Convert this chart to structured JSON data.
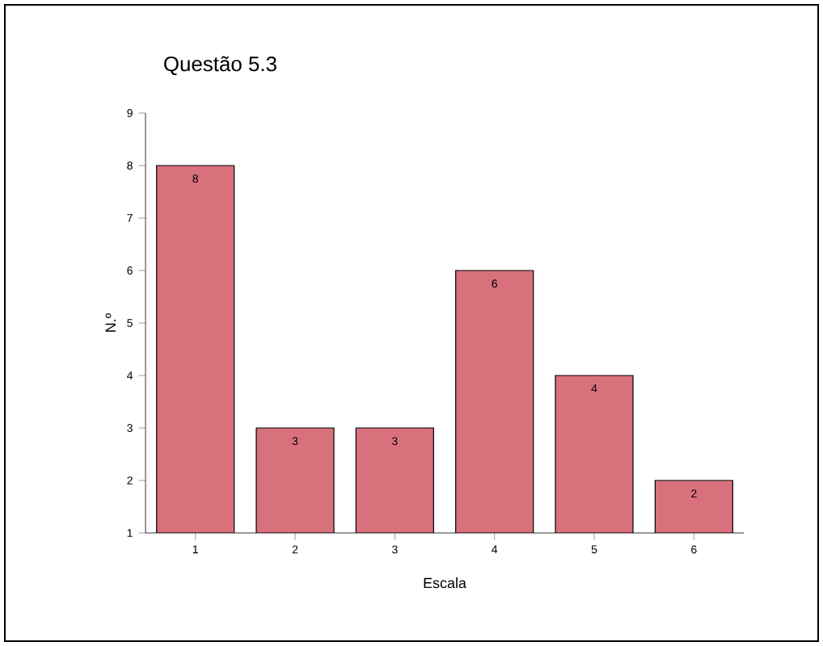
{
  "chart_data": {
    "type": "bar",
    "title": "Questão 5.3",
    "xlabel": "Escala",
    "ylabel": "N.º",
    "categories": [
      "1",
      "2",
      "3",
      "4",
      "5",
      "6"
    ],
    "values": [
      8,
      3,
      3,
      6,
      4,
      2
    ],
    "color": "#d9717c",
    "ylim": [
      1,
      9
    ],
    "yticks": [
      1,
      2,
      3,
      4,
      5,
      6,
      7,
      8,
      9
    ],
    "data_labels": true,
    "grid": false
  }
}
